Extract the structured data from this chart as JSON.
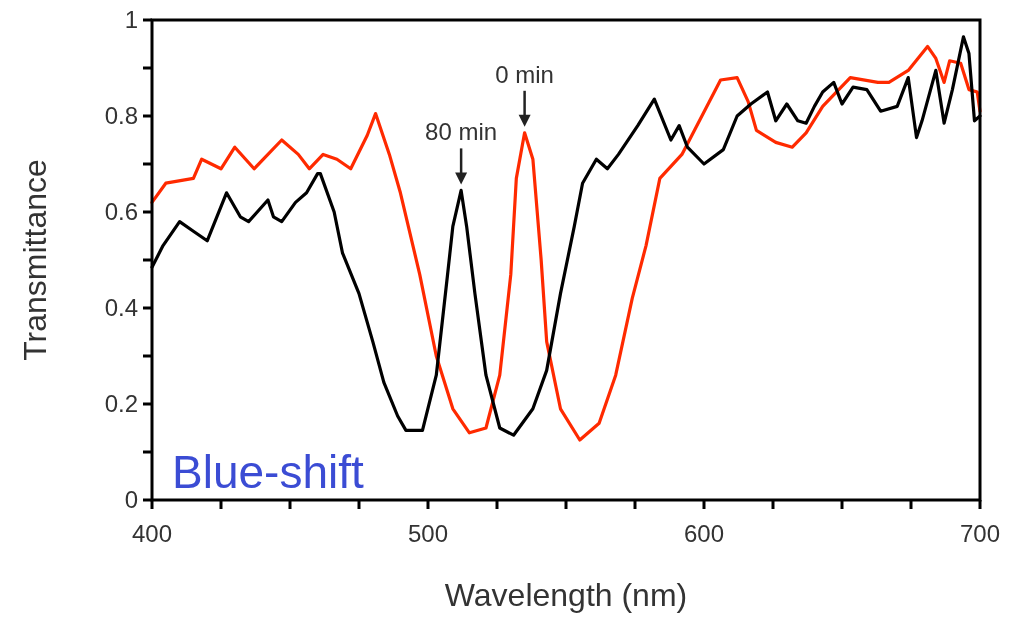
{
  "chart_data": {
    "type": "line",
    "xlabel": "Wavelength (nm)",
    "ylabel": "Transmittance",
    "xlim": [
      400,
      700
    ],
    "ylim": [
      0,
      1
    ],
    "xticks": [
      400,
      {
        "value": 425,
        "label": null
      },
      {
        "value": 450,
        "label": null
      },
      {
        "value": 475,
        "label": null
      },
      500,
      {
        "value": 525,
        "label": null
      },
      {
        "value": 550,
        "label": null
      },
      {
        "value": 575,
        "label": null
      },
      600,
      {
        "value": 625,
        "label": null
      },
      {
        "value": 650,
        "label": null
      },
      {
        "value": 675,
        "label": null
      },
      700
    ],
    "yticks": [
      0,
      {
        "value": 0.1,
        "label": null
      },
      0.2,
      {
        "value": 0.3,
        "label": null
      },
      0.4,
      {
        "value": 0.5,
        "label": null
      },
      0.6,
      {
        "value": 0.7,
        "label": null
      },
      0.8,
      {
        "value": 0.9,
        "label": null
      },
      1
    ],
    "series": [
      {
        "color": "#ff2a00",
        "x": [
          400,
          405,
          415,
          418,
          425,
          430,
          437,
          447,
          453,
          457,
          462,
          467,
          472,
          478,
          481,
          486,
          490,
          497,
          503,
          509,
          515,
          521,
          526,
          530,
          532,
          535,
          538,
          541,
          543,
          548,
          555,
          562,
          568,
          574,
          579,
          584,
          592,
          606,
          612,
          616,
          619,
          626,
          632,
          637,
          643,
          653,
          663,
          667,
          674,
          681,
          684,
          687,
          689,
          693,
          696,
          699,
          700
        ],
        "values": [
          0.62,
          0.66,
          0.67,
          0.71,
          0.69,
          0.735,
          0.69,
          0.75,
          0.72,
          0.69,
          0.72,
          0.71,
          0.69,
          0.76,
          0.805,
          0.72,
          0.64,
          0.47,
          0.3,
          0.19,
          0.14,
          0.15,
          0.26,
          0.47,
          0.67,
          0.765,
          0.71,
          0.5,
          0.33,
          0.19,
          0.125,
          0.16,
          0.26,
          0.42,
          0.53,
          0.67,
          0.72,
          0.875,
          0.88,
          0.83,
          0.77,
          0.745,
          0.735,
          0.765,
          0.82,
          0.88,
          0.87,
          0.87,
          0.895,
          0.945,
          0.92,
          0.87,
          0.915,
          0.91,
          0.855,
          0.85,
          0.81
        ]
      },
      {
        "color": "#000000",
        "x": [
          400,
          404,
          410,
          415,
          420,
          427,
          432,
          435,
          442,
          444,
          447,
          452,
          456,
          460,
          461,
          466,
          469,
          475,
          480,
          484,
          489,
          492,
          498,
          503,
          507,
          509,
          512,
          514,
          517,
          521,
          526,
          531,
          538,
          543,
          548,
          553,
          556,
          561,
          565,
          569,
          576,
          582,
          588,
          591,
          594,
          600,
          607,
          612,
          617,
          623,
          626,
          630,
          634,
          637,
          640,
          643,
          647,
          650,
          654,
          659,
          664,
          670,
          674,
          677,
          679,
          684,
          687,
          690,
          694,
          696,
          698,
          700
        ],
        "values": [
          0.485,
          0.53,
          0.58,
          0.56,
          0.54,
          0.64,
          0.59,
          0.58,
          0.625,
          0.59,
          0.58,
          0.62,
          0.64,
          0.68,
          0.68,
          0.6,
          0.515,
          0.43,
          0.33,
          0.245,
          0.175,
          0.145,
          0.145,
          0.26,
          0.465,
          0.57,
          0.645,
          0.57,
          0.43,
          0.26,
          0.15,
          0.135,
          0.19,
          0.27,
          0.43,
          0.57,
          0.66,
          0.71,
          0.69,
          0.72,
          0.78,
          0.835,
          0.75,
          0.78,
          0.735,
          0.7,
          0.73,
          0.8,
          0.825,
          0.85,
          0.79,
          0.825,
          0.79,
          0.785,
          0.82,
          0.85,
          0.87,
          0.825,
          0.86,
          0.855,
          0.81,
          0.82,
          0.88,
          0.755,
          0.79,
          0.895,
          0.785,
          0.855,
          0.965,
          0.93,
          0.79,
          0.8
        ]
      }
    ],
    "annotations": [
      {
        "text": "0 min",
        "x": 535,
        "y": 0.765
      },
      {
        "text": "80 min",
        "x": 512,
        "y": 0.645
      },
      "Blue-shift"
    ]
  }
}
